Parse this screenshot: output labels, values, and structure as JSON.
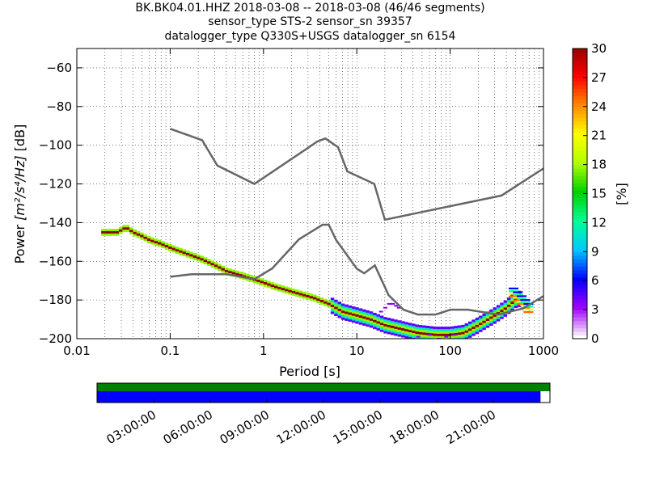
{
  "chart_data": {
    "type": "heatmap",
    "title_lines": [
      "BK.BK04.01.HHZ   2018-03-08 -- 2018-03-08  (46/46 segments)",
      "sensor_type STS-2 sensor_sn 39357",
      "datalogger_type Q330S+USGS datalogger_sn 6154"
    ],
    "xlabel": "Period [s]",
    "ylabel_prefix": "Power ",
    "ylabel_unit": "[m²/s⁴/Hz]",
    "ylabel_suffix": " [dB]",
    "x_scale": "log",
    "xlim": [
      0.01,
      1000
    ],
    "ylim": [
      -200,
      -50
    ],
    "x_ticks": [
      0.01,
      0.1,
      1,
      10,
      100,
      1000
    ],
    "x_tick_labels": [
      "0.01",
      "0.1",
      "1",
      "10",
      "100",
      "1000"
    ],
    "y_ticks": [
      -200,
      -180,
      -160,
      -140,
      -120,
      -100,
      -80,
      -60
    ],
    "y_tick_labels": [
      "−200",
      "−180",
      "−160",
      "−140",
      "−120",
      "−100",
      "−80",
      "−60"
    ],
    "grid": true,
    "colorbar": {
      "label": "[%]",
      "range": [
        0,
        30
      ],
      "ticks": [
        0,
        3,
        6,
        9,
        12,
        15,
        18,
        21,
        24,
        27,
        30
      ],
      "tick_labels": [
        "0",
        "3",
        "6",
        "9",
        "12",
        "15",
        "18",
        "21",
        "24",
        "27",
        "30"
      ],
      "colors": [
        "#ffffff",
        "#a000ff",
        "#0000ff",
        "#00c8ff",
        "#00ff96",
        "#00d000",
        "#b0ff00",
        "#ffff00",
        "#ff8800",
        "#ff0000",
        "#900000"
      ]
    },
    "noise_models": {
      "color": "#666666",
      "high": {
        "period": [
          0.1,
          0.22,
          0.32,
          0.8,
          3.8,
          4.6,
          6.3,
          7.9,
          15.4,
          20,
          354.8,
          1000
        ],
        "power": [
          -91.5,
          -97.4,
          -110.5,
          -120,
          -98,
          -96.5,
          -101,
          -113.5,
          -120,
          -138.5,
          -126,
          -112
        ]
      },
      "low": {
        "period": [
          0.1,
          0.17,
          0.4,
          0.8,
          1.24,
          2.4,
          4.3,
          5,
          6,
          10,
          12,
          15.6,
          21.9,
          31.6,
          45,
          70,
          101,
          154,
          328,
          600,
          1000
        ],
        "power": [
          -168,
          -166.7,
          -166.7,
          -169.2,
          -163.7,
          -148.6,
          -141.1,
          -141.1,
          -149,
          -163.8,
          -166.2,
          -162.1,
          -177.5,
          -185,
          -187.5,
          -187.5,
          -185,
          -185,
          -187.5,
          -184.4,
          -178
        ]
      }
    },
    "psd_mode": {
      "period": [
        0.019,
        0.022,
        0.028,
        0.031,
        0.035,
        0.04,
        0.05,
        0.06,
        0.08,
        0.1,
        0.13,
        0.17,
        0.22,
        0.3,
        0.4,
        0.55,
        0.75,
        1,
        1.3,
        1.8,
        2.5,
        3.5,
        5,
        7,
        10,
        14,
        20,
        30,
        45,
        70,
        100,
        140,
        200,
        300,
        400,
        500,
        600
      ],
      "power": [
        -145,
        -145,
        -145,
        -143,
        -143,
        -145,
        -147,
        -149,
        -151,
        -153,
        -155,
        -157,
        -159,
        -162,
        -165,
        -167,
        -169,
        -171,
        -173,
        -175,
        -177,
        -179,
        -182,
        -186,
        -188,
        -190,
        -193,
        -195,
        -197,
        -198,
        -198,
        -197,
        -193,
        -188,
        -184,
        -180,
        -179
      ],
      "outlier_period": [
        18,
        20,
        22,
        24,
        26,
        28,
        45,
        60,
        75,
        90,
        110
      ],
      "outlier_power": [
        -186,
        -184,
        -182,
        -182,
        -183,
        -184,
        -199,
        -198,
        -200,
        -199,
        -198
      ],
      "tail_period": [
        450,
        500,
        550,
        600,
        650
      ],
      "tail_power": [
        -174,
        -176,
        -178,
        -180,
        -182
      ]
    },
    "time_axis": {
      "tick_labels": [
        "03:00:00",
        "06:00:00",
        "09:00:00",
        "12:00:00",
        "15:00:00",
        "18:00:00",
        "21:00:00"
      ],
      "tick_hours": [
        3,
        6,
        9,
        12,
        15,
        18,
        21
      ],
      "range_hours": [
        0,
        24
      ],
      "data_coverage_hours": [
        0,
        24
      ],
      "used_coverage_hours": [
        0,
        23.5
      ],
      "colors": {
        "data": "#008000",
        "used": "#0000ff"
      }
    }
  }
}
